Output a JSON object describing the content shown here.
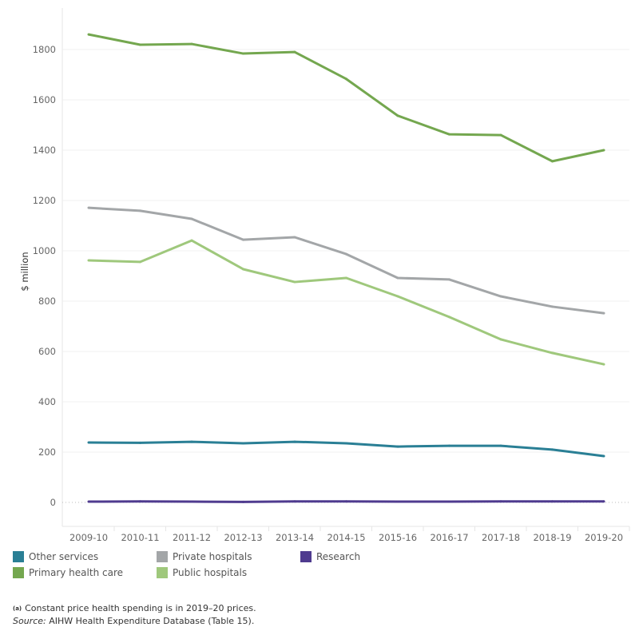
{
  "chart_data": {
    "type": "line",
    "title": "",
    "xlabel": "",
    "ylabel": "$ million",
    "ylim": [
      -100,
      1950
    ],
    "yticks": [
      0,
      200,
      400,
      600,
      800,
      1000,
      1200,
      1400,
      1600,
      1800
    ],
    "grid": true,
    "legend_position": "bottom",
    "categories": [
      "2009-10",
      "2010-11",
      "2011-12",
      "2012-13",
      "2013-14",
      "2014-15",
      "2015-16",
      "2016-17",
      "2017-18",
      "2018-19",
      "2019-20"
    ],
    "series": [
      {
        "name": "Other services",
        "color": "#2a7f95",
        "values": [
          238,
          237,
          241,
          235,
          241,
          235,
          222,
          225,
          225,
          210,
          184
        ]
      },
      {
        "name": "Primary health care",
        "color": "#74a74f",
        "values": [
          1860,
          1819,
          1822,
          1784,
          1790,
          1683,
          1537,
          1463,
          1460,
          1356,
          1400
        ]
      },
      {
        "name": "Private hospitals",
        "color": "#a3a6a8",
        "values": [
          1171,
          1159,
          1127,
          1044,
          1054,
          987,
          892,
          886,
          819,
          778,
          752
        ]
      },
      {
        "name": "Public hospitals",
        "color": "#9fc87c",
        "values": [
          962,
          956,
          1041,
          927,
          876,
          892,
          819,
          737,
          648,
          594,
          549
        ]
      },
      {
        "name": "Research",
        "color": "#4f3b8f",
        "values": [
          3,
          4,
          3,
          2,
          4,
          4,
          3,
          3,
          4,
          4,
          4
        ]
      }
    ]
  },
  "notes": {
    "marker": "(a)",
    "note": "Constant price health spending is in 2019–20 prices.",
    "source_label": "Source:",
    "source_text": " AIHW Health Expenditure Database (Table 15)."
  }
}
